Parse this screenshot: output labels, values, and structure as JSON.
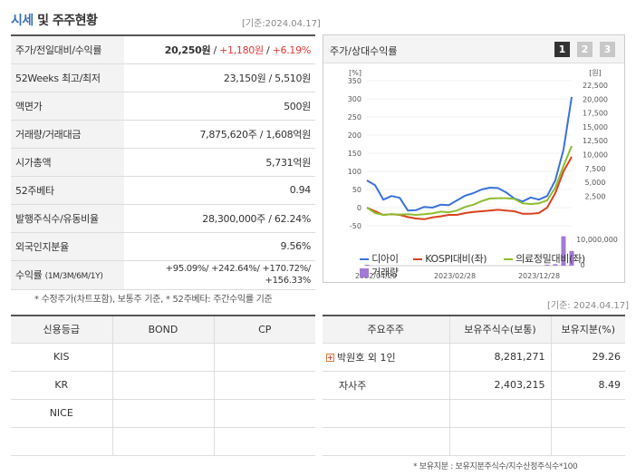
{
  "header": {
    "title_accent": "시세",
    "title_rest": " 및 주주현황",
    "as_of": "[기준:2024.04.17]"
  },
  "quote": {
    "price_label": "주가/전일대비/수익률",
    "price": "20,250원",
    "change": "+1,180원",
    "change_pct": "+6.19%",
    "w52_label": "52Weeks 최고/최저",
    "w52_value": "23,150원 / 5,510원",
    "par_label": "액면가",
    "par_value": "500원",
    "volume_label": "거래량/거래대금",
    "volume_value": "7,875,620주 / 1,608억원",
    "mcap_label": "시가총액",
    "mcap_value": "5,731억원",
    "beta_label": "52주베타",
    "beta_value": "0.94",
    "shares_label": "발행주식수/유동비율",
    "shares_value": "28,300,000주 / 62.24%",
    "foreign_label": "외국인지분율",
    "foreign_value": "9.56%",
    "return_label": "수익률",
    "return_label_small": "(1M/3M/6M/1Y)",
    "return_line1": "+95.09%/ +242.64%/ +170.72%/",
    "return_line2": "+156.33%",
    "footnote": "* 수정주가(차트포함), 보통주 기준, * 52주베타: 주간수익률 기준"
  },
  "chart": {
    "title": "주가/상대수익률",
    "tabs": [
      "1",
      "2",
      "3"
    ],
    "left_unit": "[%]",
    "right_unit": "[원]",
    "y_left_ticks": [
      "350",
      "300",
      "250",
      "200",
      "150",
      "100",
      "50",
      "0",
      "-50"
    ],
    "y_right_ticks": [
      "22,500",
      "20,000",
      "17,500",
      "15,000",
      "12,500",
      "10,000",
      "7,500",
      "5,000",
      "2,500"
    ],
    "volume_right_ticks": [
      "10,000,000",
      "0"
    ],
    "x_ticks": [
      "2022/04/29",
      "2023/02/28",
      "2023/12/28"
    ],
    "legend": {
      "s1": "디아이",
      "s2": "KOSPI대비(좌)",
      "s3": "의료정밀대비(좌)",
      "s4": "거래량"
    },
    "colors": {
      "s1": "#3b72d9",
      "s2": "#d9431e",
      "s3": "#8dbd2f",
      "s4": "#a27ad6"
    }
  },
  "chart_data": {
    "type": "line",
    "x_ticks": [
      "2022/04/29",
      "2023/02/28",
      "2023/12/28"
    ],
    "ylim_left": [
      -50,
      350
    ],
    "ylim_right": [
      0,
      22500
    ],
    "series": [
      {
        "name": "디아이",
        "axis": "left",
        "values": [
          75,
          62,
          22,
          32,
          27,
          -8,
          -7,
          2,
          0,
          8,
          7,
          20,
          33,
          40,
          50,
          55,
          54,
          42,
          25,
          17,
          28,
          22,
          32,
          75,
          160,
          305
        ]
      },
      {
        "name": "KOSPI대비(좌)",
        "axis": "left",
        "values": [
          0,
          -10,
          -20,
          -18,
          -20,
          -26,
          -30,
          -32,
          -27,
          -24,
          -20,
          -20,
          -15,
          -12,
          -10,
          -8,
          -6,
          -8,
          -10,
          -17,
          -17,
          -15,
          0,
          40,
          100,
          140
        ]
      },
      {
        "name": "의료정밀대비(좌)",
        "axis": "left",
        "values": [
          0,
          -15,
          -20,
          -18,
          -19,
          -18,
          -20,
          -18,
          -16,
          -11,
          -13,
          -8,
          2,
          8,
          18,
          25,
          26,
          26,
          24,
          12,
          10,
          12,
          20,
          55,
          115,
          170
        ]
      },
      {
        "name": "거래량",
        "axis": "volume",
        "values": [
          300000,
          0,
          0,
          0,
          0,
          0,
          0,
          0,
          0,
          0,
          0,
          0,
          0,
          0,
          0,
          0,
          0,
          0,
          0,
          0,
          0,
          0,
          400000,
          900000,
          18000000,
          9000000
        ]
      }
    ]
  },
  "rating": {
    "headers": [
      "신용등급",
      "BOND",
      "CP"
    ],
    "rows": [
      {
        "agency": "KIS",
        "bond": "",
        "cp": ""
      },
      {
        "agency": "KR",
        "bond": "",
        "cp": ""
      },
      {
        "agency": "NICE",
        "bond": "",
        "cp": ""
      },
      {
        "agency": "",
        "bond": "",
        "cp": ""
      }
    ]
  },
  "holders": {
    "as_of": "[기준: 2024.04.17]",
    "headers": [
      "주요주주",
      "보유주식수(보통)",
      "보유지분(%)"
    ],
    "rows": [
      {
        "name": "박원호 외 1인",
        "shares": "8,281,271",
        "pct": "29.26",
        "expand_icon": "plus-icon"
      },
      {
        "name": "자사주",
        "shares": "2,403,215",
        "pct": "8.49"
      },
      {
        "name": "",
        "shares": "",
        "pct": ""
      },
      {
        "name": "",
        "shares": "",
        "pct": ""
      }
    ],
    "footnote": "* 보유지분 : 보유지분주식수/지수산정주식수*100"
  }
}
